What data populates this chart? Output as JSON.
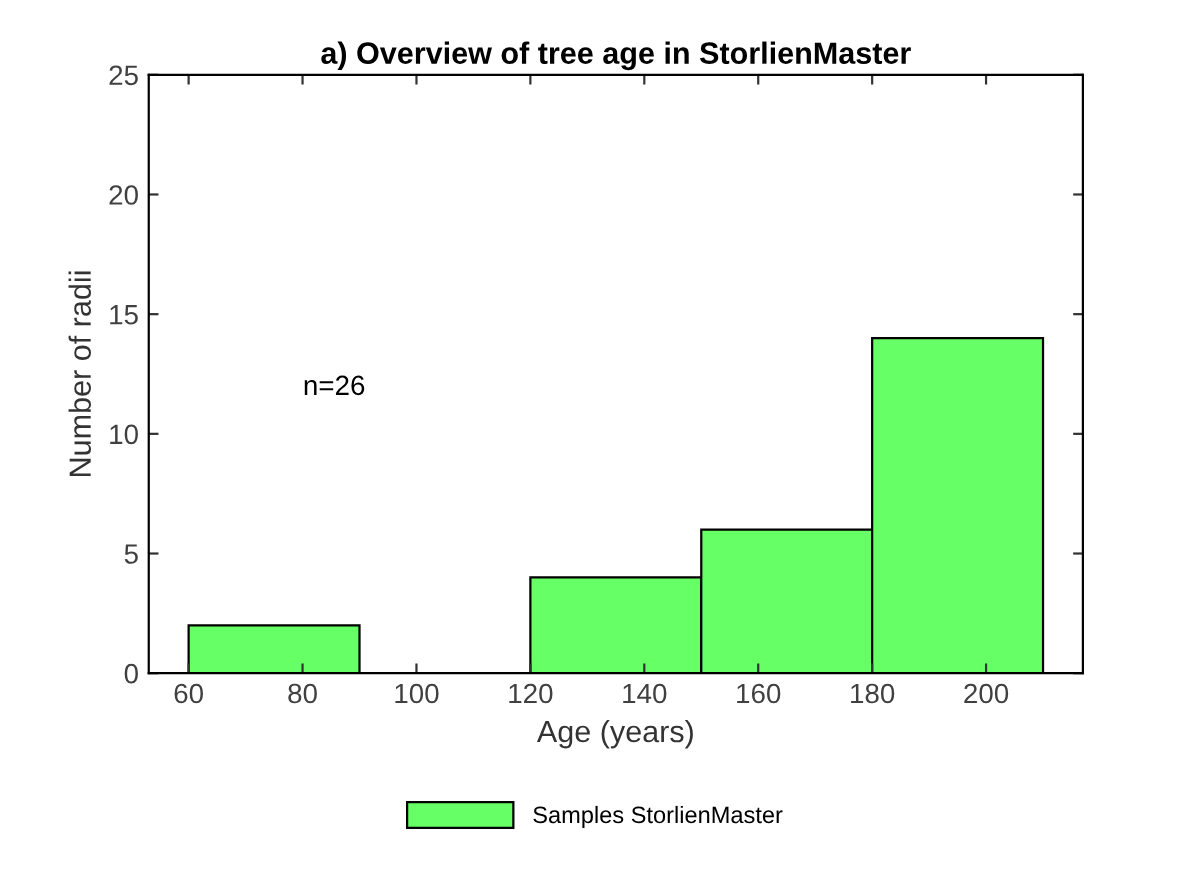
{
  "chart_data": {
    "type": "histogram",
    "title": "a) Overview of tree age in StorlienMaster",
    "xlabel": "Age (years)",
    "ylabel": "Number of radii",
    "bins": [
      60,
      90,
      120,
      150,
      180,
      210
    ],
    "series": [
      {
        "name": "Samples StorlienMaster",
        "color": "#66ff66",
        "values": [
          2,
          0,
          4,
          6,
          14
        ]
      }
    ],
    "xlim": [
      53,
      217
    ],
    "xticks": [
      60,
      80,
      100,
      120,
      140,
      160,
      180,
      200
    ],
    "ylim": [
      0,
      25
    ],
    "yticks": [
      0,
      5,
      10,
      15,
      20,
      25
    ],
    "annotations": [
      "n=26"
    ],
    "grid": false,
    "legend": "bottom"
  }
}
